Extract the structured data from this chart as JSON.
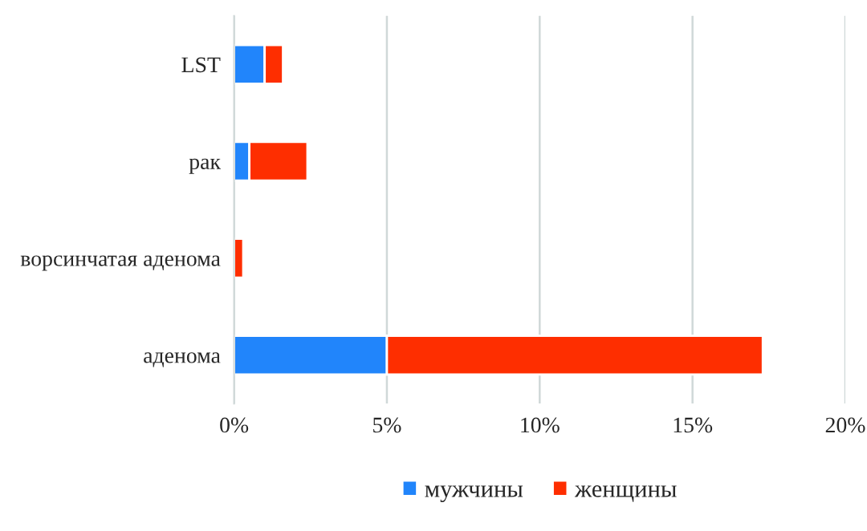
{
  "chart_data": {
    "type": "bar",
    "orientation": "horizontal",
    "stacked": true,
    "categories": [
      "LST",
      "рак",
      "ворсинчатая аденома",
      "аденома"
    ],
    "series": [
      {
        "name": "мужчины",
        "color": "#2185fb",
        "values": [
          1.0,
          0.5,
          0,
          5.0
        ]
      },
      {
        "name": "женщины",
        "color": "#fe2e00",
        "values": [
          0.6,
          1.9,
          0.3,
          12.3
        ]
      }
    ],
    "xlim": [
      0,
      20
    ],
    "xticks": [
      {
        "value": 0,
        "label": "0%"
      },
      {
        "value": 5,
        "label": "5%"
      },
      {
        "value": 10,
        "label": "10%"
      },
      {
        "value": 15,
        "label": "15%"
      },
      {
        "value": 20,
        "label": "20%"
      }
    ],
    "grid": "x",
    "legend": "bottom"
  }
}
